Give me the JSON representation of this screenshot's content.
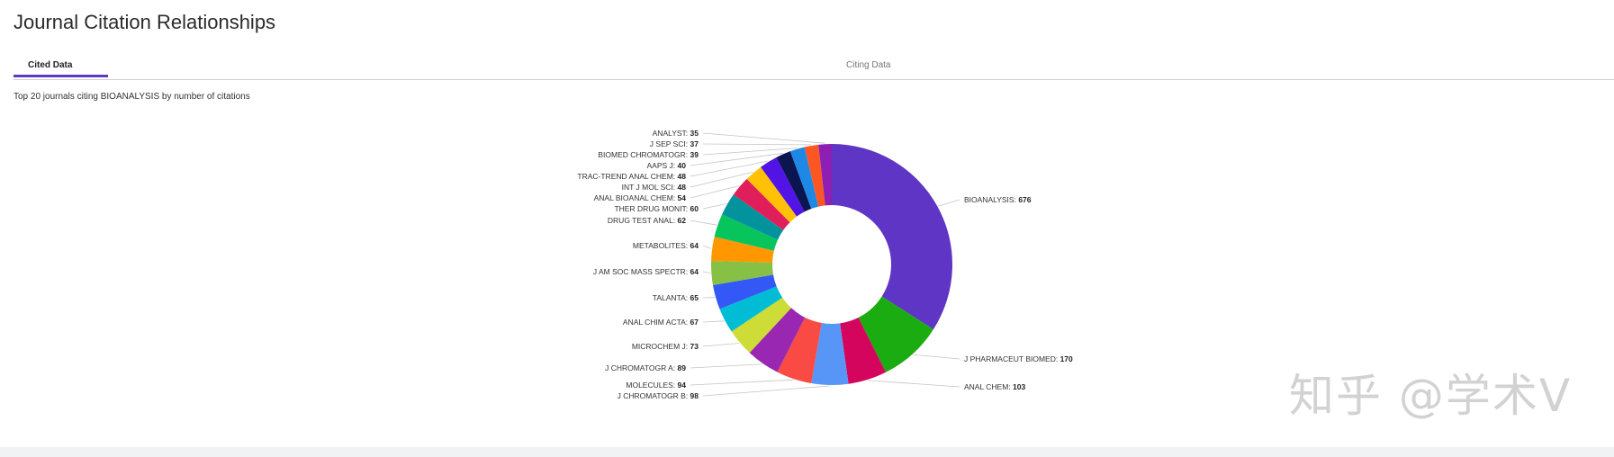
{
  "page": {
    "title": "Journal Citation Relationships",
    "watermark": "知乎 @学术V"
  },
  "tabs": [
    {
      "label": "Cited Data",
      "active": true
    },
    {
      "label": "Citing Data",
      "active": false
    }
  ],
  "chart_data": {
    "type": "pie",
    "title": "Top 20 journals citing BIOANALYSIS by number of citations",
    "categories": [
      "BIOANALYSIS",
      "J PHARMACEUT BIOMED",
      "ANAL CHEM",
      "J CHROMATOGR B",
      "MOLECULES",
      "J CHROMATOGR A",
      "MICROCHEM J",
      "ANAL CHIM ACTA",
      "TALANTA",
      "J AM SOC MASS SPECTR",
      "METABOLITES",
      "DRUG TEST ANAL",
      "THER DRUG MONIT",
      "ANAL BIOANAL CHEM",
      "INT J MOL SCI",
      "TRAC-TREND ANAL CHEM",
      "AAPS J",
      "BIOMED CHROMATOGR",
      "J SEP SCI",
      "ANALYST"
    ],
    "values": [
      676,
      170,
      103,
      98,
      94,
      89,
      73,
      67,
      65,
      64,
      64,
      62,
      60,
      54,
      48,
      48,
      40,
      39,
      37,
      35
    ],
    "colors": [
      "#5e35c4",
      "#1aac10",
      "#d4055c",
      "#5796f7",
      "#fa4a44",
      "#9a27b2",
      "#cddc37",
      "#00bcd4",
      "#3458f6",
      "#86c045",
      "#ff9800",
      "#08c45c",
      "#03939d",
      "#e01e5a",
      "#ffc106",
      "#5213e6",
      "#0b1550",
      "#1e88e5",
      "#fc5722",
      "#8d1fb4"
    ],
    "donut": true
  }
}
